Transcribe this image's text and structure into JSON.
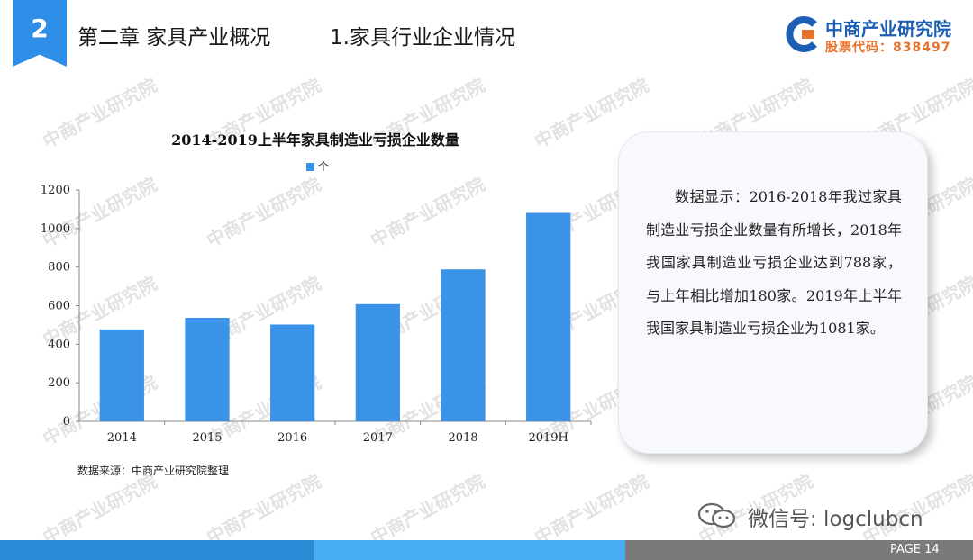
{
  "header": {
    "chapter_number": "2",
    "chapter_title": "第二章 家具产业概况",
    "section_title": "1.家具行业企业情况"
  },
  "logo": {
    "name": "中商产业研究院",
    "stock_code": "股票代码：838497"
  },
  "watermark": {
    "text": "中商产业研究院"
  },
  "chart_data": {
    "type": "bar",
    "title": "2014-2019上半年家具制造业亏损企业数量",
    "categories": [
      "2014",
      "2015",
      "2016",
      "2017",
      "2018",
      "2019H"
    ],
    "series": [
      {
        "name": "个",
        "values": [
          477,
          537,
          502,
          608,
          788,
          1081
        ]
      }
    ],
    "ylim": [
      0,
      1200
    ],
    "yticks": [
      0,
      200,
      400,
      600,
      800,
      1000,
      1200
    ],
    "xlabel": "",
    "ylabel": "",
    "grid": false,
    "legend_position": "top-center",
    "bar_color": "#3a93e6"
  },
  "source_note": "数据来源：中商产业研究院整理",
  "analysis_text": "数据显示：2016-2018年我过家具制造业亏损企业数量有所增长，2018年我国家具制造业亏损企业达到788家，与上年相比增加180家。2019年上半年我国家具制造业亏损企业为1081家。",
  "wechat": {
    "text": "微信号: logclubcn"
  },
  "footer": {
    "page_label": "PAGE 14"
  },
  "colors": {
    "accent": "#2f8ee8",
    "footer_dark": "#2a8ad6",
    "footer_light": "#47acf0",
    "footer_gray": "#7a7a7a",
    "logo_blue": "#1e5fb4",
    "logo_orange": "#e8722c"
  }
}
